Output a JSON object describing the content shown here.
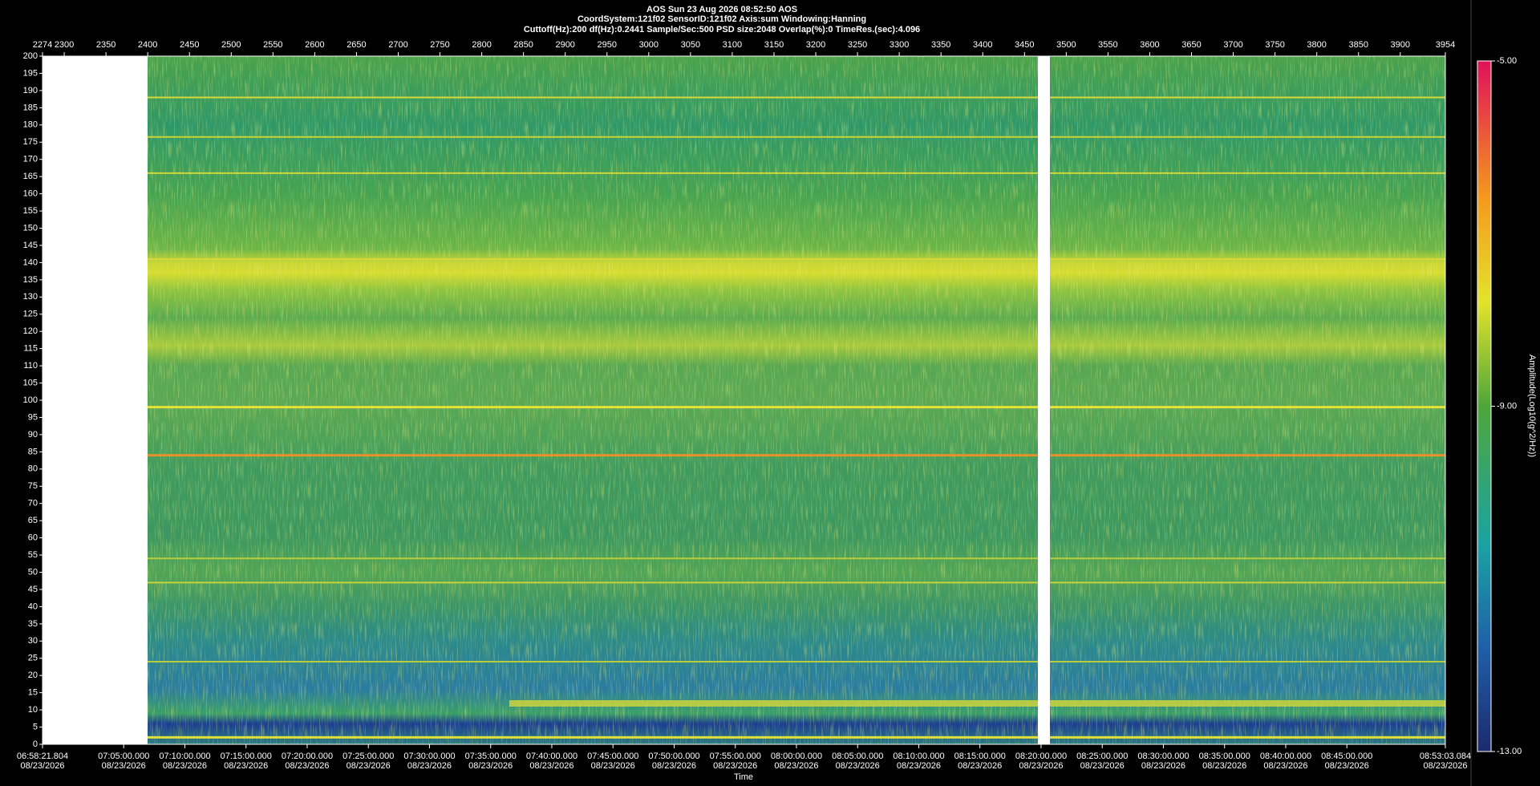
{
  "header": {
    "lines": [
      "AOS  Sun 23 Aug 2026 08:52:50  AOS",
      "CoordSystem:121f02    SensorID:121f02    Axis:sum     Windowing:Hanning",
      "Cuttoff(Hz):200      df(Hz):0.2441      Sample/Sec:500      PSD size:2048       Overlap(%):0       TimeRes.(sec):4.096"
    ]
  },
  "chart_data": {
    "type": "spectrogram",
    "x_label": "Time",
    "colorbar_label": "Amplitude(Log10(g^2/Hz))",
    "xlim": [
      2274,
      3954
    ],
    "xticks": [
      2274,
      2300,
      2350,
      2400,
      2450,
      2500,
      2550,
      2600,
      2650,
      2700,
      2750,
      2800,
      2850,
      2900,
      2950,
      3000,
      3050,
      3100,
      3150,
      3200,
      3250,
      3300,
      3350,
      3400,
      3450,
      3500,
      3550,
      3600,
      3650,
      3700,
      3750,
      3800,
      3850,
      3900,
      3954
    ],
    "ylim": [
      0,
      200
    ],
    "yticks": [
      0,
      5,
      10,
      15,
      20,
      25,
      30,
      35,
      40,
      45,
      50,
      55,
      60,
      65,
      70,
      75,
      80,
      85,
      90,
      95,
      100,
      105,
      110,
      115,
      120,
      125,
      130,
      135,
      140,
      145,
      150,
      155,
      160,
      165,
      170,
      175,
      180,
      185,
      190,
      195,
      200
    ],
    "timelim": [
      "06:58:21.804",
      "08:53:03.084"
    ],
    "timeticks": [
      {
        "time": "06:58:21.804",
        "date": "08/23/2026"
      },
      {
        "time": "07:05:00.000",
        "date": "08/23/2026"
      },
      {
        "time": "07:10:00.000",
        "date": "08/23/2026"
      },
      {
        "time": "07:15:00.000",
        "date": "08/23/2026"
      },
      {
        "time": "07:20:00.000",
        "date": "08/23/2026"
      },
      {
        "time": "07:25:00.000",
        "date": "08/23/2026"
      },
      {
        "time": "07:30:00.000",
        "date": "08/23/2026"
      },
      {
        "time": "07:35:00.000",
        "date": "08/23/2026"
      },
      {
        "time": "07:40:00.000",
        "date": "08/23/2026"
      },
      {
        "time": "07:45:00.000",
        "date": "08/23/2026"
      },
      {
        "time": "07:50:00.000",
        "date": "08/23/2026"
      },
      {
        "time": "07:55:00.000",
        "date": "08/23/2026"
      },
      {
        "time": "08:00:00.000",
        "date": "08/23/2026"
      },
      {
        "time": "08:05:00.000",
        "date": "08/23/2026"
      },
      {
        "time": "08:10:00.000",
        "date": "08/23/2026"
      },
      {
        "time": "08:15:00.000",
        "date": "08/23/2026"
      },
      {
        "time": "08:20:00.000",
        "date": "08/23/2026"
      },
      {
        "time": "08:25:00.000",
        "date": "08/23/2026"
      },
      {
        "time": "08:30:00.000",
        "date": "08/23/2026"
      },
      {
        "time": "08:35:00.000",
        "date": "08/23/2026"
      },
      {
        "time": "08:40:00.000",
        "date": "08/23/2026"
      },
      {
        "time": "08:45:00.000",
        "date": "08/23/2026"
      },
      {
        "time": "08:53:03.084",
        "date": "08/23/2026"
      }
    ],
    "clim": [
      -13,
      -5
    ],
    "cticks": [
      {
        "value": -13,
        "label": "-13.00"
      },
      {
        "value": -9,
        "label": "-9.00"
      },
      {
        "value": -5,
        "label": "-5.00"
      }
    ]
  }
}
